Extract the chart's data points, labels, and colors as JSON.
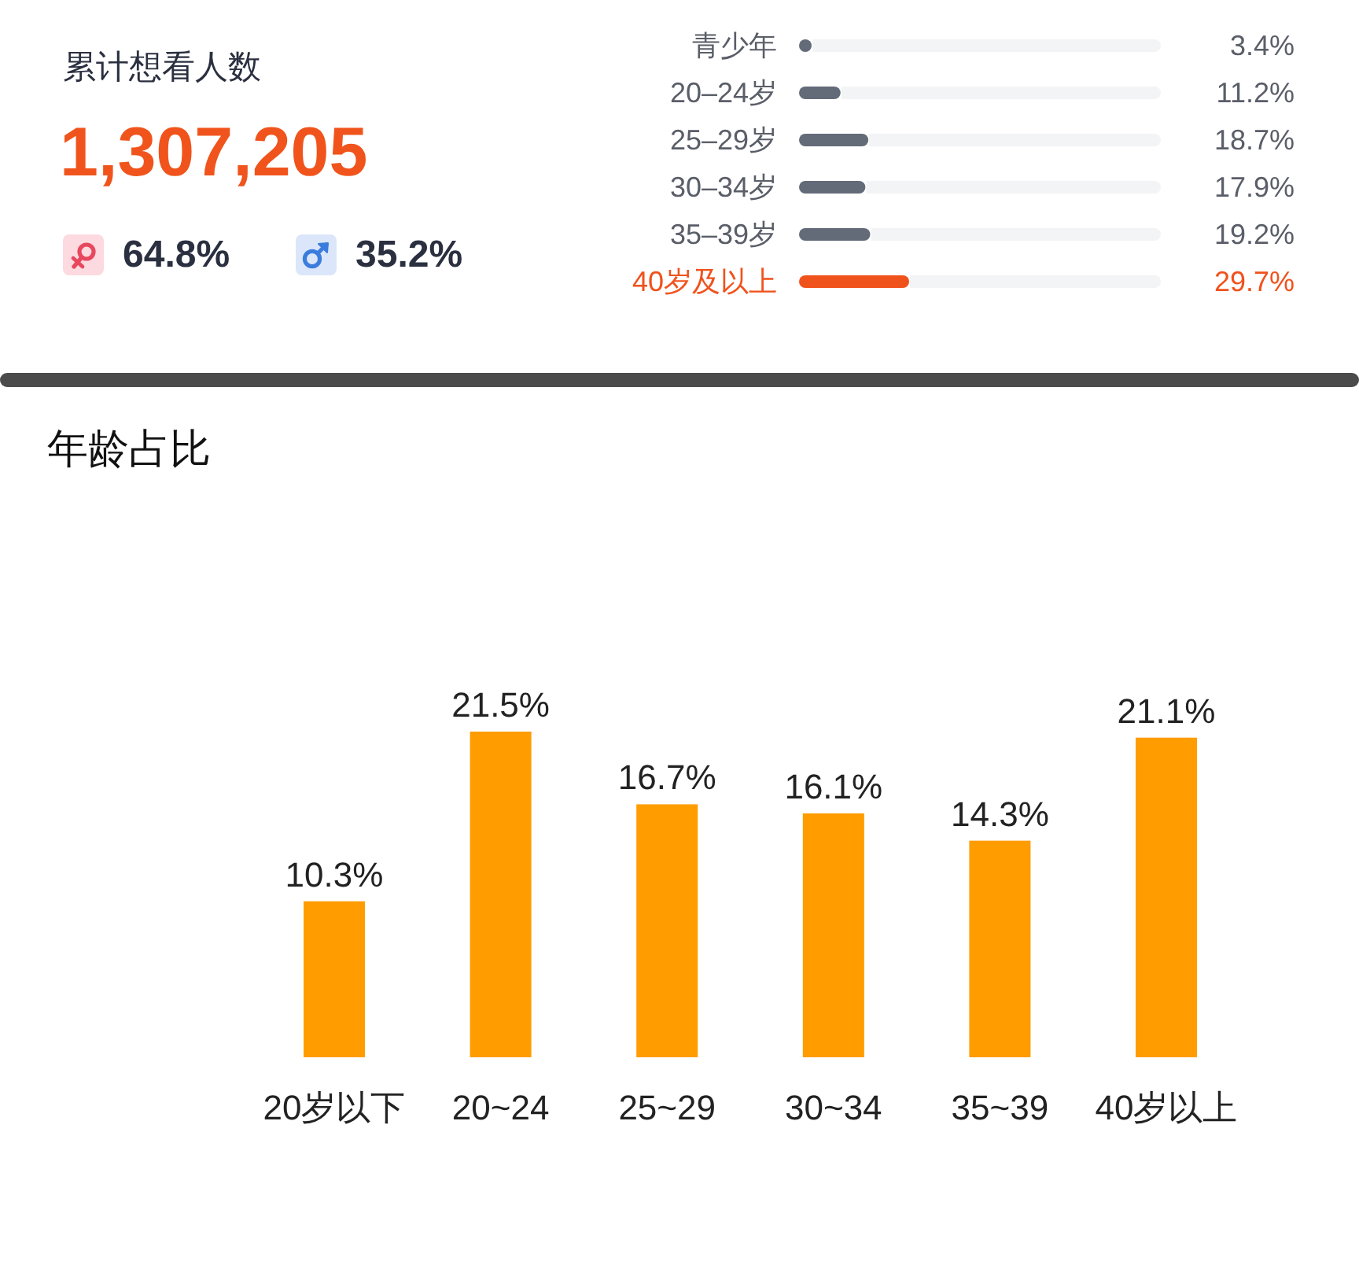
{
  "chart_data": [
    {
      "type": "other",
      "title": "累计想看人数",
      "annotations": [
        "1,307,205",
        "64.8%",
        "35.2%"
      ]
    },
    {
      "type": "bar",
      "orientation": "horizontal",
      "categories": [
        "青少年",
        "20–24岁",
        "25–29岁",
        "30–34岁",
        "35–39岁",
        "40岁及以上"
      ],
      "values": [
        3.4,
        11.2,
        18.7,
        17.9,
        19.2,
        29.7
      ],
      "colors": [
        "#636a78",
        "#636a78",
        "#636a78",
        "#636a78",
        "#636a78",
        "#f0521c"
      ],
      "value_labels": [
        "3.4%",
        "11.2%",
        "18.7%",
        "17.9%",
        "19.2%",
        "29.7%"
      ]
    },
    {
      "type": "bar",
      "title": "年龄占比",
      "categories": [
        "20岁以下",
        "20~24",
        "25~29",
        "30~34",
        "35~39",
        "40岁以上"
      ],
      "values": [
        10.3,
        21.5,
        16.7,
        16.1,
        14.3,
        21.1
      ],
      "color": "#ff9c00",
      "value_labels": [
        "10.3%",
        "21.5%",
        "16.7%",
        "16.1%",
        "14.3%",
        "21.1%"
      ]
    }
  ]
}
